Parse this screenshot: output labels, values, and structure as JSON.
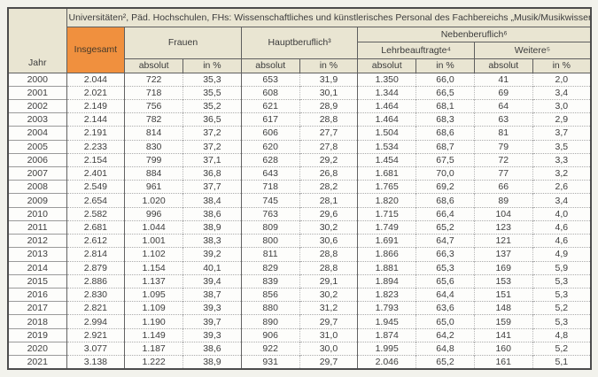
{
  "page": {
    "background": "#f2f2ec"
  },
  "colors": {
    "header_bg": "#e9e5d2",
    "accent_orange": "#f0903e",
    "border_dark": "#4c4c4c",
    "text": "#3e3e3e"
  },
  "chart_data": {
    "type": "table",
    "title": "Universitäten², Päd. Hochschulen, FHs: Wissenschaftliches und künstlerisches Personal des Fachbereichs „Musik/Musikwissenschaft“",
    "row_header": "Jahr",
    "column_groups": {
      "insgesamt": "Insgesamt",
      "frauen": "Frauen",
      "hauptberuflich": "Hauptberuflich³",
      "nebenberuflich": "Nebenberuflich⁶",
      "lehrbeauftragte": "Lehrbeauftragte⁴",
      "weitere": "Weitere⁵"
    },
    "sub_headers": {
      "absolut": "absolut",
      "in_prozent": "in %"
    },
    "columns": [
      "Jahr",
      "Insgesamt",
      "Frauen absolut",
      "Frauen in %",
      "Hauptberuflich absolut",
      "Hauptberuflich in %",
      "Lehrbeauftragte absolut",
      "Lehrbeauftragte in %",
      "Weitere absolut",
      "Weitere in %"
    ],
    "rows": [
      [
        "2000",
        "2.044",
        "722",
        "35,3",
        "653",
        "31,9",
        "1.350",
        "66,0",
        "41",
        "2,0"
      ],
      [
        "2001",
        "2.021",
        "718",
        "35,5",
        "608",
        "30,1",
        "1.344",
        "66,5",
        "69",
        "3,4"
      ],
      [
        "2002",
        "2.149",
        "756",
        "35,2",
        "621",
        "28,9",
        "1.464",
        "68,1",
        "64",
        "3,0"
      ],
      [
        "2003",
        "2.144",
        "782",
        "36,5",
        "617",
        "28,8",
        "1.464",
        "68,3",
        "63",
        "2,9"
      ],
      [
        "2004",
        "2.191",
        "814",
        "37,2",
        "606",
        "27,7",
        "1.504",
        "68,6",
        "81",
        "3,7"
      ],
      [
        "2005",
        "2.233",
        "830",
        "37,2",
        "620",
        "27,8",
        "1.534",
        "68,7",
        "79",
        "3,5"
      ],
      [
        "2006",
        "2.154",
        "799",
        "37,1",
        "628",
        "29,2",
        "1.454",
        "67,5",
        "72",
        "3,3"
      ],
      [
        "2007",
        "2.401",
        "884",
        "36,8",
        "643",
        "26,8",
        "1.681",
        "70,0",
        "77",
        "3,2"
      ],
      [
        "2008",
        "2.549",
        "961",
        "37,7",
        "718",
        "28,2",
        "1.765",
        "69,2",
        "66",
        "2,6"
      ],
      [
        "2009",
        "2.654",
        "1.020",
        "38,4",
        "745",
        "28,1",
        "1.820",
        "68,6",
        "89",
        "3,4"
      ],
      [
        "2010",
        "2.582",
        "996",
        "38,6",
        "763",
        "29,6",
        "1.715",
        "66,4",
        "104",
        "4,0"
      ],
      [
        "2011",
        "2.681",
        "1.044",
        "38,9",
        "809",
        "30,2",
        "1.749",
        "65,2",
        "123",
        "4,6"
      ],
      [
        "2012",
        "2.612",
        "1.001",
        "38,3",
        "800",
        "30,6",
        "1.691",
        "64,7",
        "121",
        "4,6"
      ],
      [
        "2013",
        "2.814",
        "1.102",
        "39,2",
        "811",
        "28,8",
        "1.866",
        "66,3",
        "137",
        "4,9"
      ],
      [
        "2014",
        "2.879",
        "1.154",
        "40,1",
        "829",
        "28,8",
        "1.881",
        "65,3",
        "169",
        "5,9"
      ],
      [
        "2015",
        "2.886",
        "1.137",
        "39,4",
        "839",
        "29,1",
        "1.894",
        "65,6",
        "153",
        "5,3"
      ],
      [
        "2016",
        "2.830",
        "1.095",
        "38,7",
        "856",
        "30,2",
        "1.823",
        "64,4",
        "151",
        "5,3"
      ],
      [
        "2017",
        "2.821",
        "1.109",
        "39,3",
        "880",
        "31,2",
        "1.793",
        "63,6",
        "148",
        "5,2"
      ],
      [
        "2018",
        "2.994",
        "1.190",
        "39,7",
        "890",
        "29,7",
        "1.945",
        "65,0",
        "159",
        "5,3"
      ],
      [
        "2019",
        "2.921",
        "1.149",
        "39,3",
        "906",
        "31,0",
        "1.874",
        "64,2",
        "141",
        "4,8"
      ],
      [
        "2020",
        "3.077",
        "1.187",
        "38,6",
        "922",
        "30,0",
        "1.995",
        "64,8",
        "160",
        "5,2"
      ],
      [
        "2021",
        "3.138",
        "1.222",
        "38,9",
        "931",
        "29,7",
        "2.046",
        "65,2",
        "161",
        "5,1"
      ]
    ]
  }
}
